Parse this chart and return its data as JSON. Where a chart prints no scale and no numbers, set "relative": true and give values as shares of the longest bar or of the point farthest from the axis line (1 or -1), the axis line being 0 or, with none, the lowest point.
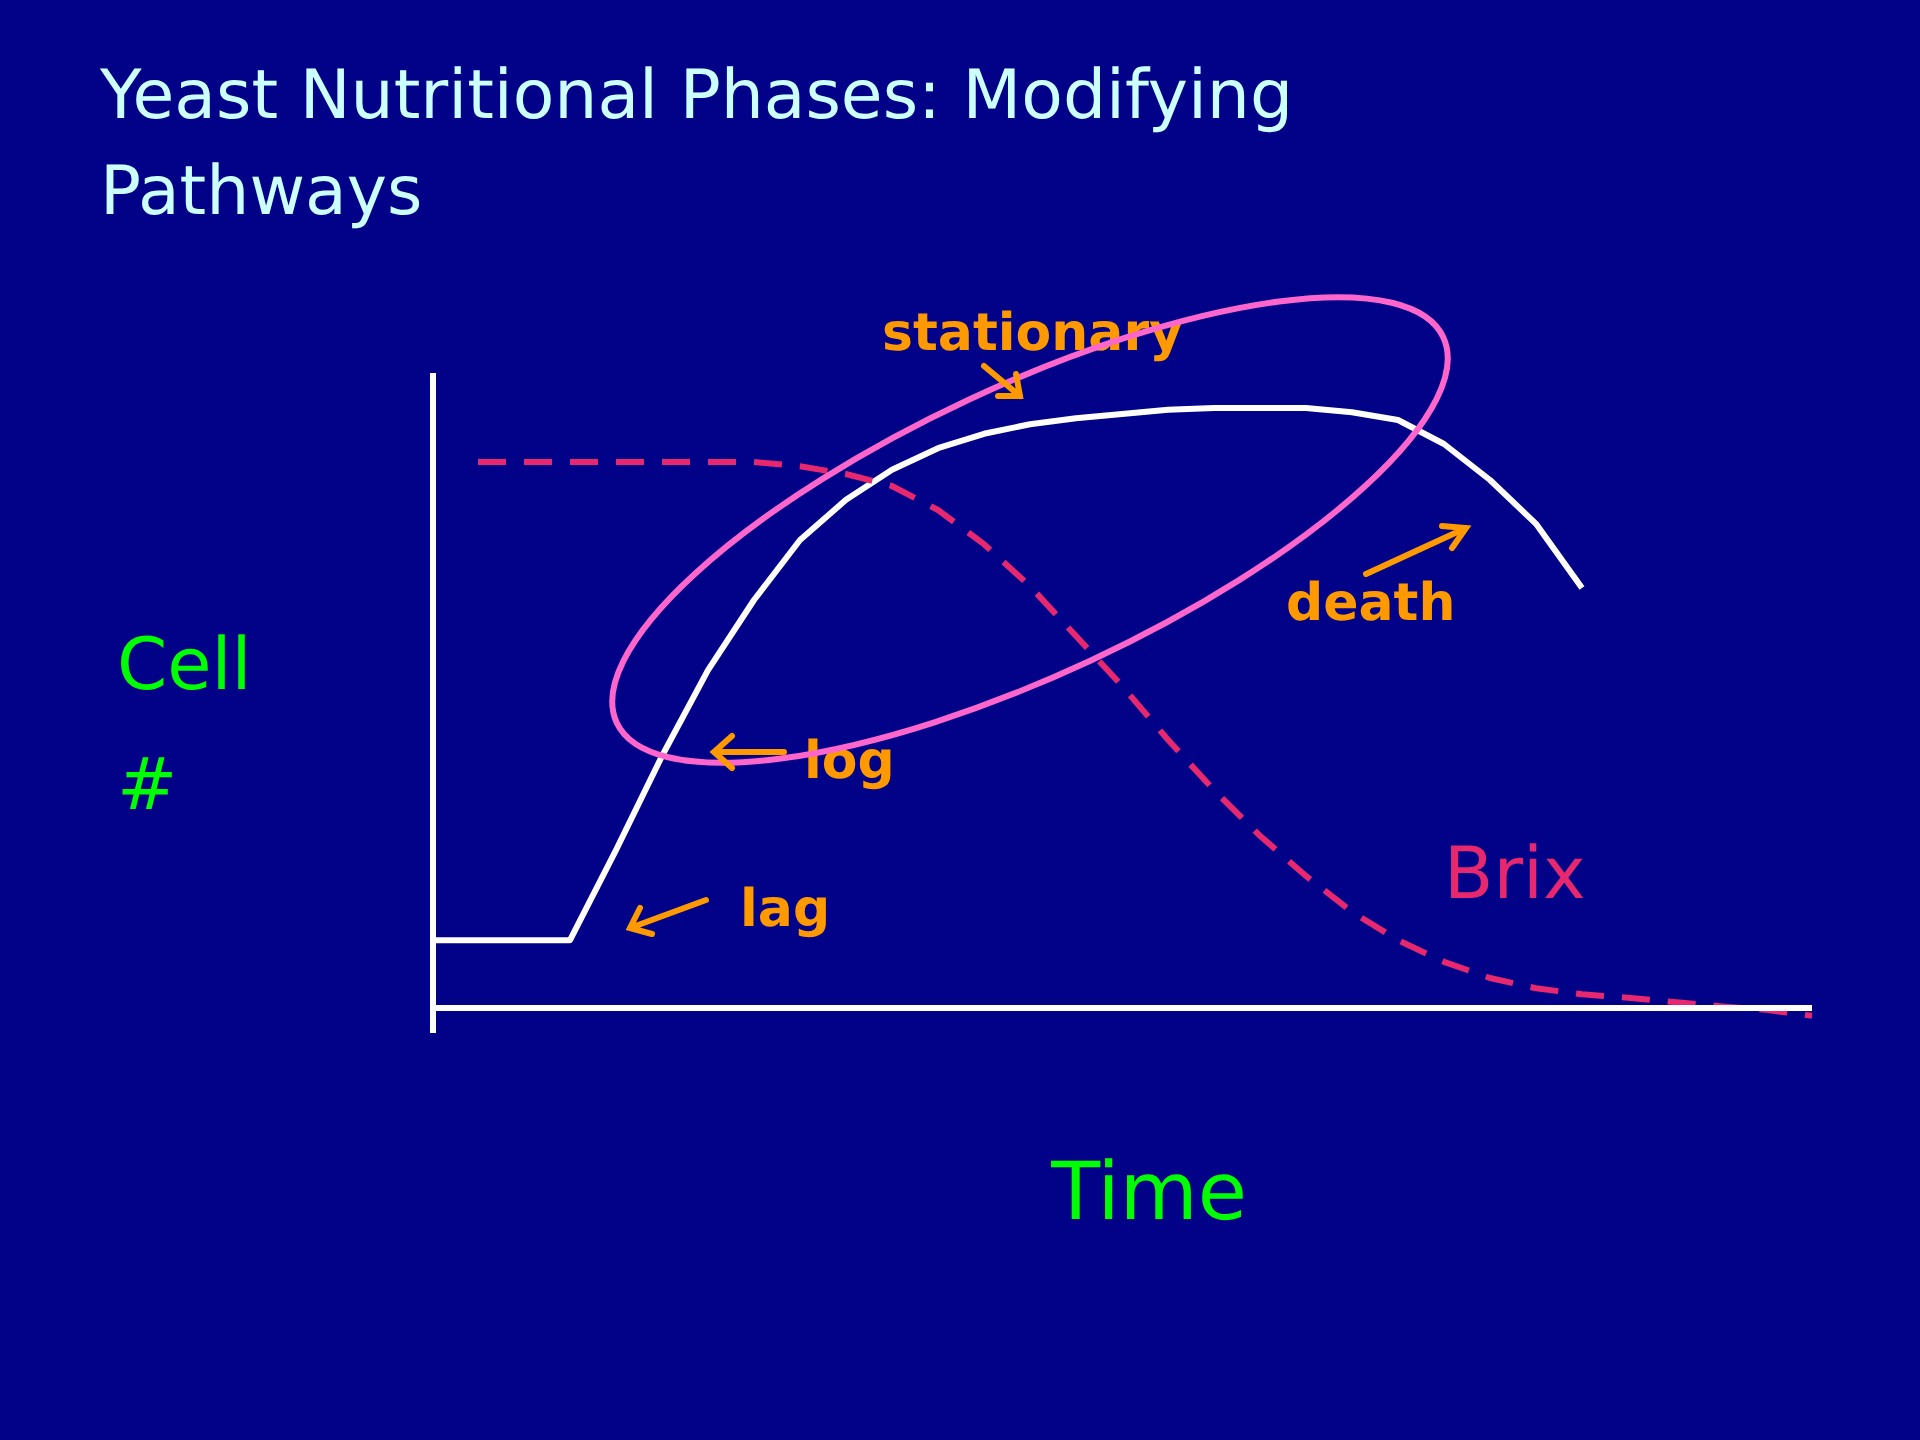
{
  "chart_data": {
    "type": "line",
    "title": "Yeast Nutritional Phases: Modifying Pathways",
    "xlabel": "Time",
    "ylabel": "Cell #",
    "relative": true,
    "categories": [
      null,
      null,
      null,
      null,
      null,
      null,
      null,
      null,
      null,
      null,
      null,
      null,
      null,
      null,
      null,
      null,
      null,
      null,
      null,
      null,
      null,
      null,
      null,
      null,
      null,
      null,
      null,
      null,
      null,
      null,
      null
    ],
    "series": [
      {
        "color": "#ffffff",
        "line_style": "solid",
        "values": [
          0.113,
          0.113,
          0.113,
          0.113,
          0.263,
          0.42,
          0.563,
          0.68,
          0.78,
          0.847,
          0.897,
          0.933,
          0.957,
          0.973,
          0.983,
          0.99,
          0.997,
          1,
          1,
          1,
          0.993,
          0.98,
          0.94,
          0.88,
          0.807,
          0.7,
          null,
          null,
          null,
          null,
          null
        ]
      },
      {
        "name": "Brix",
        "color": "#e8286e",
        "line_style": "dashed",
        "values": [
          null,
          0.91,
          0.91,
          0.91,
          0.91,
          0.91,
          0.91,
          0.91,
          0.903,
          0.89,
          0.87,
          0.83,
          0.773,
          0.703,
          0.62,
          0.537,
          0.447,
          0.363,
          0.287,
          0.22,
          0.16,
          0.113,
          0.077,
          0.05,
          0.033,
          0.023,
          0.017,
          0.01,
          0.003,
          -0.003,
          -0.013
        ]
      }
    ],
    "annotations": [
      "stationary",
      "death",
      "log",
      "lag"
    ]
  }
}
